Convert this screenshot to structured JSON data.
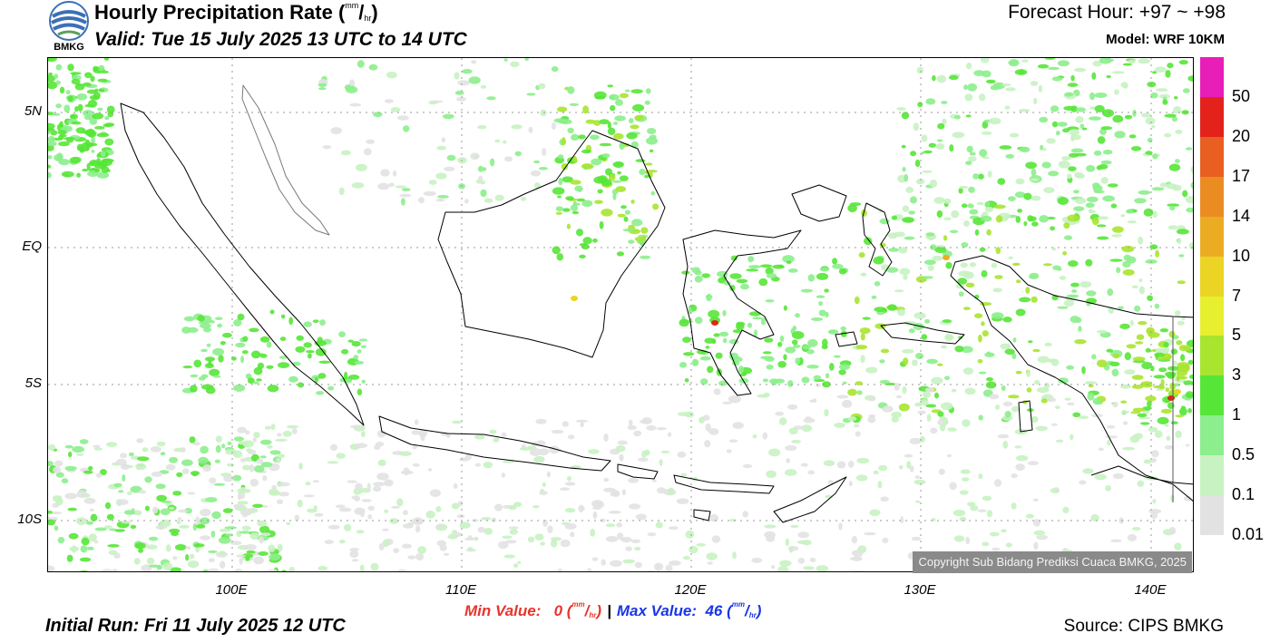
{
  "header": {
    "title_main": "Hourly Precipitation Rate (",
    "title_unit_top": "mm",
    "title_unit_sep": "/",
    "title_unit_bottom": "hr",
    "title_close": ")",
    "valid": "Valid: Tue 15 July 2025 13 UTC to 14 UTC",
    "forecast_hour": "Forecast Hour: +97 ~ +98",
    "model": "Model: WRF 10KM",
    "logo_text": "BMKG",
    "logo_icon": "bmkg-logo-icon"
  },
  "map": {
    "lat_labels": [
      "5N",
      "EQ",
      "5S",
      "10S"
    ],
    "lon_labels": [
      "100E",
      "110E",
      "120E",
      "130E",
      "140E"
    ],
    "land_fill": "#ffffff",
    "coast_color": "#000000",
    "grid_color": "#9a9a9a"
  },
  "legend": {
    "labels": [
      "50",
      "20",
      "17",
      "14",
      "10",
      "7",
      "5",
      "3",
      "1",
      "0.5",
      "0.1",
      "0.01"
    ],
    "colors": [
      "#e81eb8",
      "#e3231b",
      "#e85f21",
      "#eb8c23",
      "#ebac23",
      "#ebd423",
      "#e7ef2f",
      "#a9e42f",
      "#56e637",
      "#8cee8c",
      "#c8f2c2",
      "#e2e2e2"
    ]
  },
  "footer": {
    "copyright": "Copyright Sub Bidang Prediksi Cuaca BMKG, 2025",
    "min_label": "Min Value:",
    "min_value": "0",
    "max_label": "Max Value:",
    "max_value": "46",
    "unit_top": "mm",
    "unit_bottom": "hr",
    "separator": "|",
    "initial_run": "Initial Run: Fri 11 July 2025 12 UTC",
    "source": "Source: CIPS BMKG"
  }
}
